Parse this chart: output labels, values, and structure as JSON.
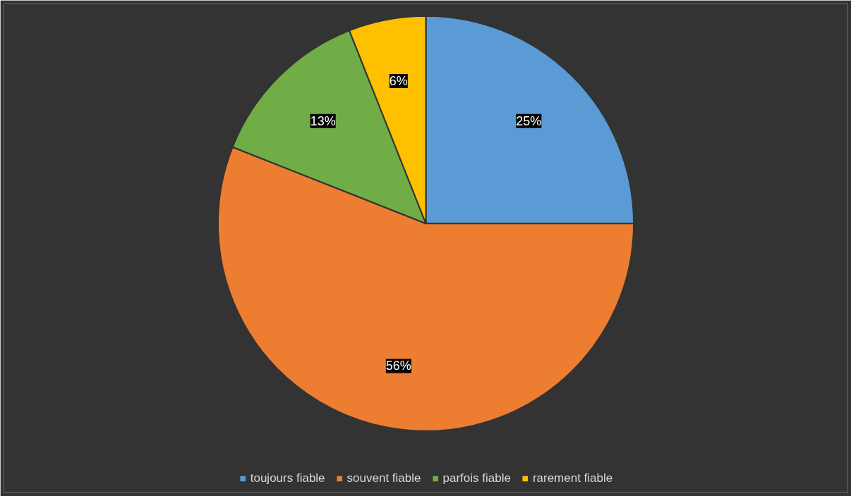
{
  "chart_data": {
    "type": "pie",
    "categories": [
      "toujours fiable",
      "souvent fiable",
      "parfois fiable",
      "rarement fiable"
    ],
    "values": [
      25,
      56,
      13,
      6
    ],
    "colors": [
      "#5b9bd5",
      "#ed7d31",
      "#70ad47",
      "#ffc000"
    ],
    "value_labels": [
      "25%",
      "56%",
      "13%",
      "6%"
    ],
    "legend": "bottom"
  }
}
